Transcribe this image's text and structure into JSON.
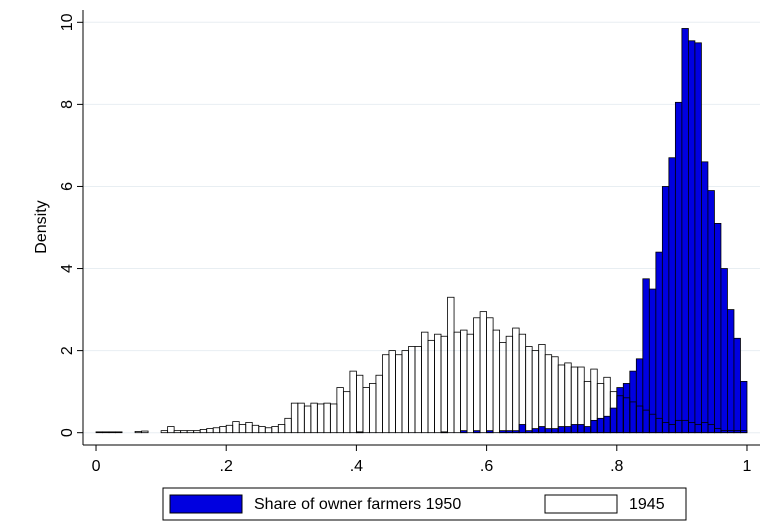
{
  "chart_data": {
    "type": "histogram",
    "y_label": "Density",
    "bins": [
      0,
      0.01,
      0.02,
      0.03,
      0.04,
      0.05,
      0.06,
      0.07,
      0.08,
      0.09,
      0.1,
      0.11,
      0.12,
      0.13,
      0.14,
      0.15,
      0.16,
      0.17,
      0.18,
      0.19,
      0.2,
      0.21,
      0.22,
      0.23,
      0.24,
      0.25,
      0.26,
      0.27,
      0.28,
      0.29,
      0.3,
      0.31,
      0.32,
      0.33,
      0.34,
      0.35,
      0.36,
      0.37,
      0.38,
      0.39,
      0.4,
      0.41,
      0.42,
      0.43,
      0.44,
      0.45,
      0.46,
      0.47,
      0.48,
      0.49,
      0.5,
      0.51,
      0.52,
      0.53,
      0.54,
      0.55,
      0.56,
      0.57,
      0.58,
      0.59,
      0.6,
      0.61,
      0.62,
      0.63,
      0.64,
      0.65,
      0.66,
      0.67,
      0.68,
      0.69,
      0.7,
      0.71,
      0.72,
      0.73,
      0.74,
      0.75,
      0.76,
      0.77,
      0.78,
      0.79,
      0.8,
      0.81,
      0.82,
      0.83,
      0.84,
      0.85,
      0.86,
      0.87,
      0.88,
      0.89,
      0.9,
      0.91,
      0.92,
      0.93,
      0.94,
      0.95,
      0.96,
      0.97,
      0.98,
      0.99,
      1
    ],
    "series": [
      {
        "name": "Share of owner farmers 1950",
        "color": "#0000e0",
        "values": [
          0,
          0,
          0,
          0,
          0,
          0,
          0,
          0,
          0,
          0,
          0,
          0,
          0,
          0,
          0,
          0,
          0,
          0,
          0,
          0,
          0,
          0,
          0,
          0,
          0,
          0,
          0,
          0,
          0,
          0,
          0,
          0,
          0,
          0,
          0,
          0,
          0,
          0,
          0,
          0,
          0.02,
          0,
          0,
          0,
          0,
          0,
          0,
          0,
          0,
          0,
          0,
          0,
          0,
          0.02,
          0,
          0,
          0.05,
          0,
          0.05,
          0,
          0.05,
          0,
          0.05,
          0.05,
          0.05,
          0.2,
          0.05,
          0.1,
          0.15,
          0.1,
          0.1,
          0.15,
          0.15,
          0.2,
          0.2,
          0.15,
          0.3,
          0.35,
          0.4,
          0.6,
          1.1,
          1.2,
          1.5,
          1.8,
          3.75,
          3.5,
          4.4,
          6.0,
          6.7,
          8.05,
          9.85,
          9.55,
          9.5,
          6.6,
          5.9,
          5.1,
          4.0,
          3.0,
          2.3,
          1.25,
          0.55
        ]
      },
      {
        "name": "1945",
        "color": "none",
        "values": [
          0.02,
          0.02,
          0.02,
          0.02,
          0,
          0,
          0.03,
          0.04,
          0,
          0,
          0.05,
          0.15,
          0.05,
          0.05,
          0.05,
          0.05,
          0.08,
          0.1,
          0.12,
          0.15,
          0.18,
          0.27,
          0.2,
          0.25,
          0.18,
          0.15,
          0.12,
          0.15,
          0.2,
          0.35,
          0.72,
          0.72,
          0.65,
          0.72,
          0.7,
          0.72,
          0.7,
          1.1,
          1.0,
          1.5,
          1.4,
          1.1,
          1.2,
          1.4,
          1.9,
          2.0,
          1.9,
          2.0,
          2.1,
          2.1,
          2.45,
          2.25,
          2.4,
          2.35,
          3.3,
          2.45,
          2.5,
          2.4,
          2.8,
          2.95,
          2.8,
          2.5,
          2.2,
          2.35,
          2.55,
          2.4,
          2.1,
          2.0,
          2.15,
          1.9,
          1.85,
          1.65,
          1.7,
          1.6,
          1.6,
          1.25,
          1.55,
          1.2,
          1.35,
          1.0,
          0.9,
          0.85,
          0.75,
          0.65,
          0.55,
          0.45,
          0.35,
          0.25,
          0.2,
          0.3,
          0.3,
          0.25,
          0.2,
          0.25,
          0.2,
          0.1,
          0.05,
          0.05,
          0.05,
          0.05
        ]
      }
    ],
    "xlim": [
      -0.02,
      1.02
    ],
    "xticks": [
      0,
      {
        "value": 0.2,
        "label": ".2"
      },
      {
        "value": 0.4,
        "label": ".4"
      },
      {
        "value": 0.6,
        "label": ".6"
      },
      {
        "value": 0.8,
        "label": ".8"
      },
      1
    ],
    "ylim": [
      -0.3,
      10.3
    ],
    "yticks": [
      0,
      2,
      4,
      6,
      8,
      10
    ],
    "grid": true,
    "legend": "bottom"
  }
}
